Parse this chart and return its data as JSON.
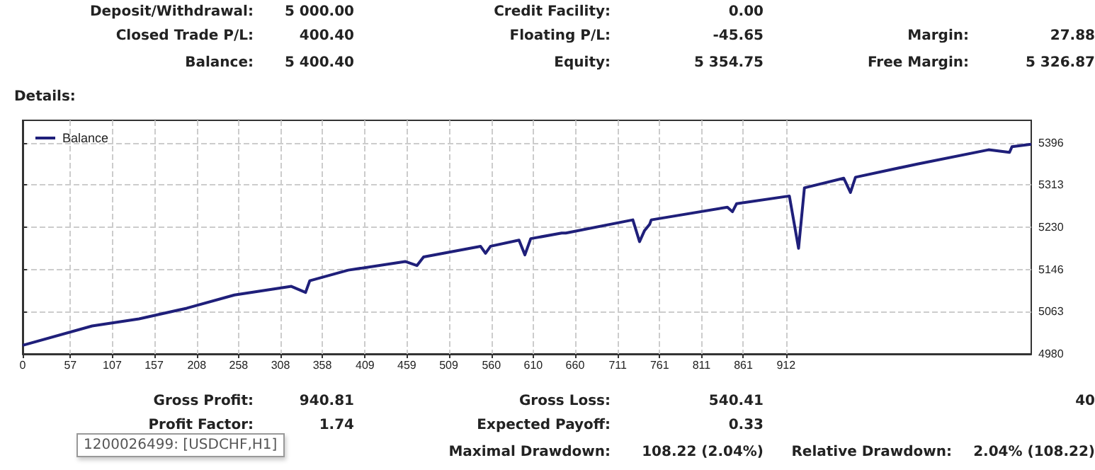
{
  "chart_data": {
    "type": "line",
    "x": [
      0,
      83,
      139,
      196,
      253,
      321,
      338,
      343,
      389,
      457,
      471,
      479,
      547,
      553,
      559,
      593,
      600,
      607,
      644,
      649,
      729,
      737,
      743,
      749,
      751,
      842,
      848,
      853,
      916,
      927,
      934,
      981,
      989,
      995,
      1069,
      1154,
      1179,
      1182,
      1205
    ],
    "series": [
      {
        "name": "Balance",
        "color": "#1f1f7a",
        "values": [
          4997,
          5035,
          5049,
          5070,
          5096,
          5113,
          5101,
          5124,
          5145,
          5162,
          5154,
          5171,
          5192,
          5178,
          5192,
          5204,
          5175,
          5207,
          5218,
          5218,
          5244,
          5201,
          5223,
          5235,
          5244,
          5269,
          5260,
          5276,
          5291,
          5188,
          5307,
          5326,
          5298,
          5328,
          5354,
          5382,
          5377,
          5388,
          5393
        ]
      }
    ],
    "xlim": [
      0,
      1205
    ],
    "xticks": [
      0,
      57,
      107,
      157,
      208,
      258,
      308,
      358,
      409,
      459,
      509,
      560,
      610,
      660,
      711,
      761,
      811,
      861,
      912
    ],
    "ylim": [
      4980,
      5440
    ],
    "yticks": [
      4980,
      5063,
      5146,
      5230,
      5313,
      5396
    ],
    "grid": true,
    "legend": "top left",
    "marker": "none",
    "line_style": "solid",
    "annotations": [
      "Deposit/Withdrawal:",
      "5 000.00",
      "Credit Facility:",
      "0.00",
      "Closed Trade P/L:",
      "400.40",
      "Floating P/L:",
      "-45.65",
      "Margin:",
      "27.88",
      "Balance:",
      "5 400.40",
      "Equity:",
      "5 354.75",
      "Free Margin:",
      "5 326.87",
      "Details:",
      "Gross Profit:",
      "940.81",
      "Gross Loss:",
      "540.41",
      "40",
      "Profit Factor:",
      "1.74",
      "Expected Payoff:",
      "0.33",
      "Maximal Drawdown:",
      "108.22 (2.04%)",
      "Relative Drawdown:",
      "2.04% (108.22)",
      "1200026499: [USDCHF,H1]"
    ]
  }
}
